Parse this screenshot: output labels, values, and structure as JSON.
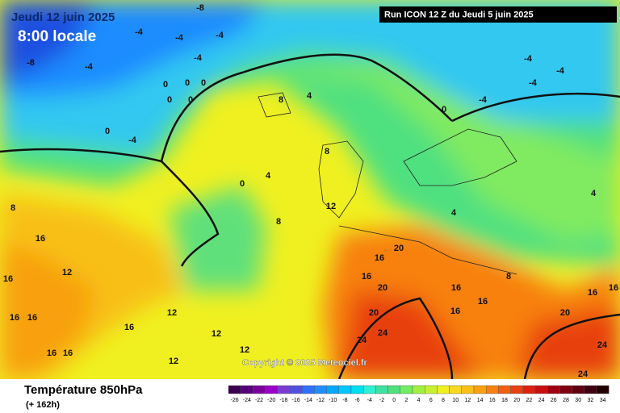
{
  "header": {
    "date": "Jeudi 12 juin 2025",
    "time": "8:00 locale",
    "run": "Run ICON 12 Z du Jeudi 5 juin 2025"
  },
  "footer": {
    "title": "Température 850hPa",
    "lead": "(+ 162h)",
    "copyright": "Copyright © 2025 Meteociel.fr"
  },
  "legend": {
    "values": [
      -26,
      -24,
      -22,
      -20,
      -18,
      -16,
      -14,
      -12,
      -10,
      -8,
      -6,
      -4,
      -2,
      0,
      2,
      4,
      6,
      8,
      10,
      12,
      14,
      16,
      18,
      20,
      22,
      24,
      26,
      28,
      30,
      32,
      34
    ],
    "colors": [
      "#3c0050",
      "#55007a",
      "#7a009a",
      "#9a00c8",
      "#7a3cd0",
      "#5050e0",
      "#3070ff",
      "#1f8cff",
      "#00a8ff",
      "#00c8ff",
      "#00e0f0",
      "#30f0d0",
      "#40e0a0",
      "#50e080",
      "#70ee60",
      "#a0f040",
      "#c8f030",
      "#f0f020",
      "#f8d820",
      "#f8c018",
      "#f8a010",
      "#f88010",
      "#f06010",
      "#e84010",
      "#e02010",
      "#c81010",
      "#a00010",
      "#800010",
      "#600010",
      "#400010",
      "#200000"
    ]
  },
  "map_labels": [
    -8,
    -4,
    -4,
    -4,
    -8,
    -4,
    -4,
    0,
    0,
    0,
    0,
    0,
    -4,
    0,
    4,
    8,
    8,
    4,
    0,
    8,
    16,
    16,
    12,
    16,
    16,
    16,
    16,
    16,
    12,
    12,
    12,
    12,
    8,
    12,
    16,
    20,
    16,
    20,
    20,
    24,
    24,
    16,
    16,
    16,
    20,
    24,
    24,
    16,
    16,
    8,
    4,
    4,
    0,
    -4,
    -4,
    -4,
    -4
  ]
}
